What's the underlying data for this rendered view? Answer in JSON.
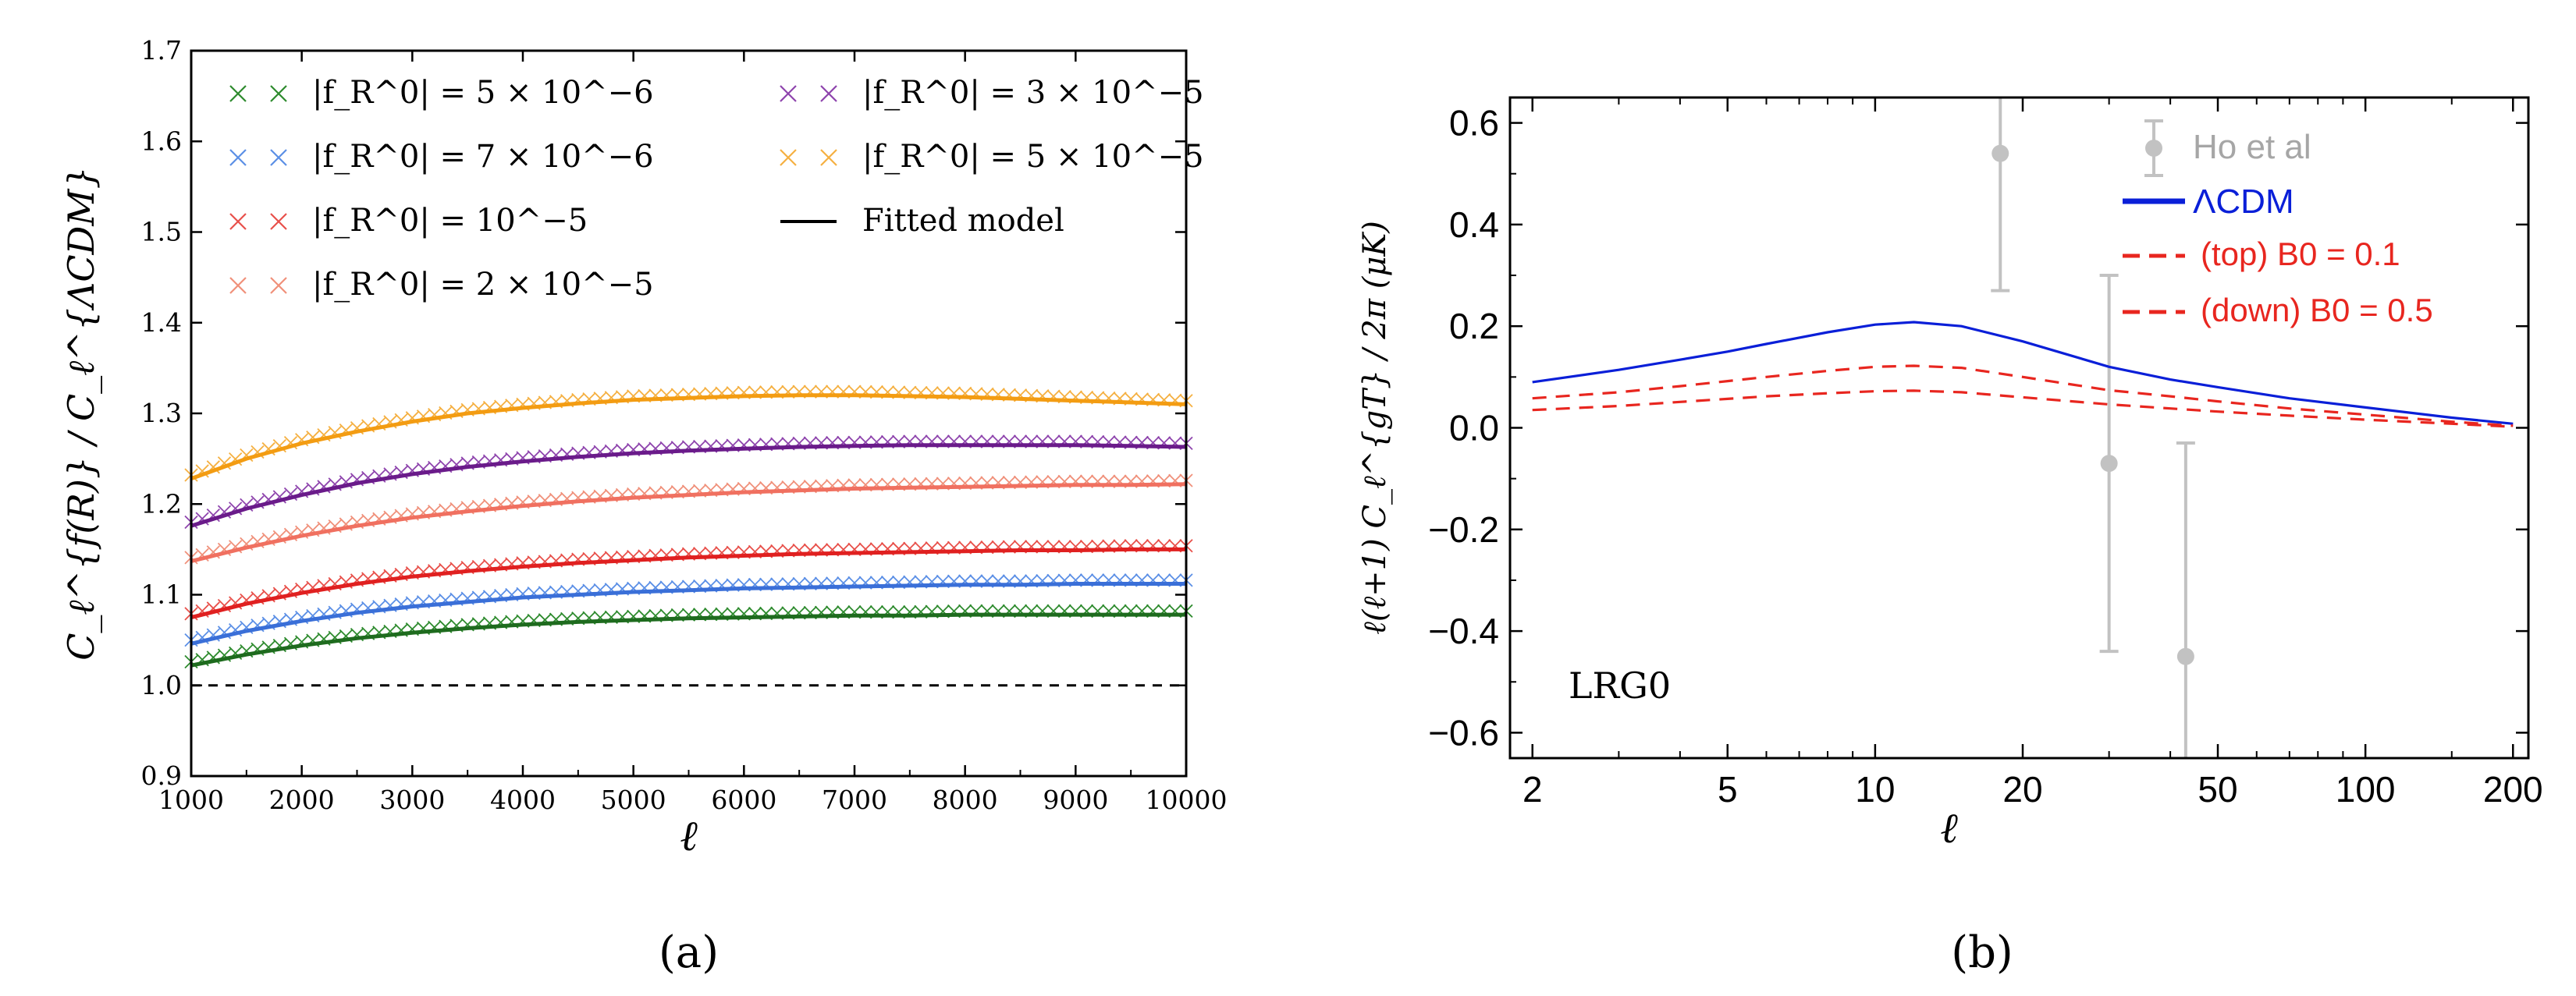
{
  "chart_data": [
    {
      "panel": "(a)",
      "type": "line",
      "title": "",
      "xlabel": "ℓ",
      "ylabel": "C_ℓ^{f(R)} / C_ℓ^{ΛCDM}",
      "xlim": [
        1000,
        10000
      ],
      "ylim": [
        0.9,
        1.7
      ],
      "xticks": [
        1000,
        2000,
        3000,
        4000,
        5000,
        6000,
        7000,
        8000,
        9000,
        10000
      ],
      "yticks": [
        0.9,
        1.0,
        1.1,
        1.2,
        1.3,
        1.4,
        1.5,
        1.6,
        1.7
      ],
      "grid": false,
      "legend_placement": "top",
      "reference_line": {
        "y": 1.0,
        "style": "dashed",
        "color": "#000000"
      },
      "x": [
        1000,
        1500,
        2000,
        2500,
        3000,
        3500,
        4000,
        4500,
        5000,
        5500,
        6000,
        6500,
        7000,
        7500,
        8000,
        8500,
        9000,
        9500,
        10000
      ],
      "series": [
        {
          "name": "|f_R^0| = 5 × 10^−6",
          "color": "#2e8b2e",
          "fit_color": "#1e6b1e",
          "values": [
            1.022,
            1.034,
            1.044,
            1.052,
            1.058,
            1.063,
            1.067,
            1.07,
            1.072,
            1.074,
            1.075,
            1.076,
            1.077,
            1.077,
            1.078,
            1.078,
            1.078,
            1.078,
            1.078
          ]
        },
        {
          "name": "|f_R^0| = 7 × 10^−6",
          "color": "#5b8fe6",
          "fit_color": "#3a6fd8",
          "values": [
            1.046,
            1.06,
            1.071,
            1.08,
            1.087,
            1.092,
            1.097,
            1.1,
            1.103,
            1.105,
            1.107,
            1.108,
            1.109,
            1.11,
            1.111,
            1.111,
            1.112,
            1.112,
            1.112
          ]
        },
        {
          "name": "|f_R^0| = 10^−5",
          "color": "#e8504a",
          "fit_color": "#e02020",
          "values": [
            1.075,
            1.09,
            1.102,
            1.112,
            1.12,
            1.126,
            1.131,
            1.135,
            1.138,
            1.141,
            1.143,
            1.145,
            1.146,
            1.147,
            1.148,
            1.149,
            1.149,
            1.15,
            1.15
          ]
        },
        {
          "name": "|f_R^0| = 2 × 10^−5",
          "color": "#f0907a",
          "fit_color": "#f07060",
          "values": [
            1.137,
            1.152,
            1.165,
            1.176,
            1.185,
            1.192,
            1.198,
            1.203,
            1.207,
            1.21,
            1.213,
            1.215,
            1.217,
            1.218,
            1.219,
            1.22,
            1.221,
            1.221,
            1.222
          ]
        },
        {
          "name": "|f_R^0| = 3 × 10^−5",
          "color": "#8e44ad",
          "fit_color": "#6a1b8a",
          "values": [
            1.176,
            1.195,
            1.21,
            1.223,
            1.233,
            1.241,
            1.247,
            1.252,
            1.256,
            1.259,
            1.261,
            1.263,
            1.264,
            1.265,
            1.265,
            1.265,
            1.265,
            1.264,
            1.263
          ]
        },
        {
          "name": "|f_R^0| = 5 × 10^−5",
          "color": "#f5b041",
          "fit_color": "#f39c12",
          "values": [
            1.228,
            1.25,
            1.267,
            1.28,
            1.291,
            1.3,
            1.306,
            1.311,
            1.315,
            1.317,
            1.319,
            1.32,
            1.32,
            1.319,
            1.318,
            1.316,
            1.314,
            1.312,
            1.31
          ]
        }
      ],
      "fit_legend": "Fitted model",
      "caption": "(a)"
    },
    {
      "panel": "(b)",
      "type": "line",
      "title": "",
      "xlabel": "ℓ",
      "ylabel": "ℓ(ℓ+1) C_ℓ^{gT} / 2π  (μK)",
      "xscale": "log",
      "xlim": [
        1.8,
        215
      ],
      "ylim": [
        -0.65,
        0.65
      ],
      "xticks": [
        2,
        5,
        10,
        20,
        50,
        100,
        200
      ],
      "yticks": [
        -0.6,
        -0.4,
        -0.2,
        0.0,
        0.2,
        0.4,
        0.6
      ],
      "grid": false,
      "legend_placement": "top-right",
      "annotation": "LRG0",
      "x": [
        2,
        3,
        4,
        5,
        6,
        8,
        10,
        12,
        15,
        20,
        30,
        40,
        50,
        70,
        100,
        150,
        200
      ],
      "series": [
        {
          "name": "ΛCDM",
          "color": "#0a1fd8",
          "style": "solid",
          "values": [
            0.09,
            0.114,
            0.134,
            0.15,
            0.165,
            0.188,
            0.203,
            0.208,
            0.2,
            0.17,
            0.12,
            0.095,
            0.08,
            0.058,
            0.04,
            0.02,
            0.008
          ]
        },
        {
          "name": "(top)    B0 = 0.1",
          "color": "#e8261f",
          "style": "dashed",
          "values": [
            0.058,
            0.07,
            0.082,
            0.092,
            0.1,
            0.112,
            0.12,
            0.122,
            0.118,
            0.1,
            0.074,
            0.062,
            0.052,
            0.038,
            0.026,
            0.012,
            0.004
          ]
        },
        {
          "name": "(down) B0 = 0.5",
          "color": "#e8261f",
          "style": "dashed",
          "values": [
            0.035,
            0.043,
            0.051,
            0.057,
            0.062,
            0.068,
            0.072,
            0.073,
            0.07,
            0.06,
            0.046,
            0.038,
            0.032,
            0.024,
            0.016,
            0.008,
            0.002
          ]
        }
      ],
      "errorbars": {
        "name": "Ho et al",
        "color": "#c2c2c2",
        "x": [
          18,
          30,
          43
        ],
        "y": [
          0.54,
          -0.07,
          -0.45
        ],
        "err": [
          0.27,
          0.37,
          0.42
        ]
      },
      "caption": "(b)"
    }
  ]
}
